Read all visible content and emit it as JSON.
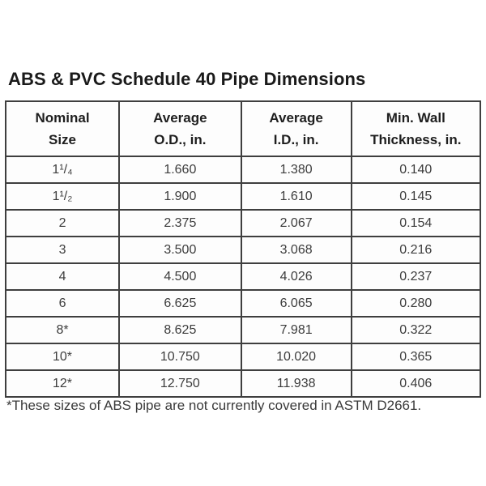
{
  "title": "ABS & PVC Schedule 40 Pipe Dimensions",
  "table": {
    "columns": [
      {
        "line1": "Nominal",
        "line2": "Size"
      },
      {
        "line1": "Average",
        "line2": "O.D., in."
      },
      {
        "line1": "Average",
        "line2": "I.D., in."
      },
      {
        "line1": "Min. Wall",
        "line2": "Thickness, in."
      }
    ],
    "rows": [
      {
        "size": "1¹/₄",
        "od": "1.660",
        "id": "1.380",
        "wall": "0.140"
      },
      {
        "size": "1¹/₂",
        "od": "1.900",
        "id": "1.610",
        "wall": "0.145"
      },
      {
        "size": "2",
        "od": "2.375",
        "id": "2.067",
        "wall": "0.154"
      },
      {
        "size": "3",
        "od": "3.500",
        "id": "3.068",
        "wall": "0.216"
      },
      {
        "size": "4",
        "od": "4.500",
        "id": "4.026",
        "wall": "0.237"
      },
      {
        "size": "6",
        "od": "6.625",
        "id": "6.065",
        "wall": "0.280"
      },
      {
        "size": "8*",
        "od": "8.625",
        "id": "7.981",
        "wall": "0.322"
      },
      {
        "size": "10*",
        "od": "10.750",
        "id": "10.020",
        "wall": "0.365"
      },
      {
        "size": "12*",
        "od": "12.750",
        "id": "11.938",
        "wall": "0.406"
      }
    ]
  },
  "footnote": "*These sizes of ABS pipe are not currently covered in ASTM D2661.",
  "colors": {
    "background": "#ffffff",
    "title_text": "#1a1a1a",
    "header_text": "#1e1e1e",
    "body_text": "#3c3c3c",
    "border": "#3f3f3f"
  }
}
